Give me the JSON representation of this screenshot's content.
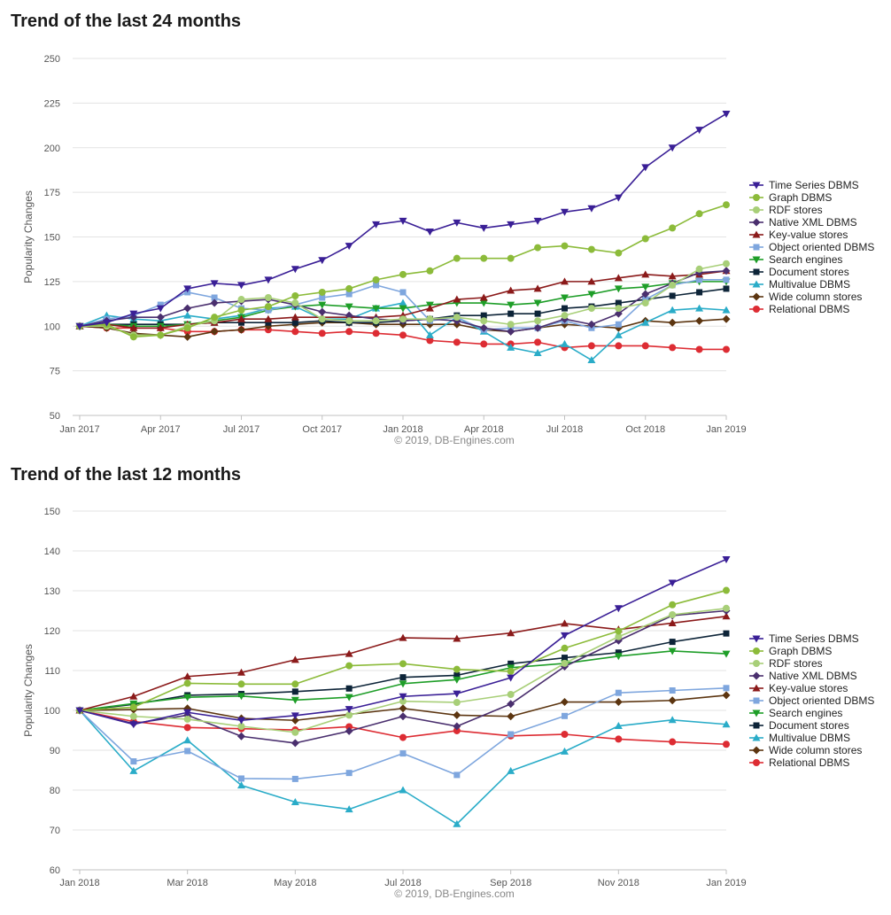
{
  "credit": "© 2019, DB-Engines.com",
  "ylabel": "Popularity Changes",
  "series_styles": [
    {
      "name": "Time Series DBMS",
      "color": "#3a1f96",
      "marker": "triangle-down"
    },
    {
      "name": "Graph DBMS",
      "color": "#8cbb3a",
      "marker": "circle"
    },
    {
      "name": "RDF stores",
      "color": "#a8cf78",
      "marker": "circle"
    },
    {
      "name": "Native XML DBMS",
      "color": "#4a2f6e",
      "marker": "diamond"
    },
    {
      "name": "Key-value stores",
      "color": "#8b1a1a",
      "marker": "triangle-up"
    },
    {
      "name": "Object oriented DBMS",
      "color": "#7ea6de",
      "marker": "square"
    },
    {
      "name": "Search engines",
      "color": "#1e9e28",
      "marker": "triangle-down"
    },
    {
      "name": "Document stores",
      "color": "#0d2438",
      "marker": "square"
    },
    {
      "name": "Multivalue DBMS",
      "color": "#2aacc8",
      "marker": "triangle-up"
    },
    {
      "name": "Wide column stores",
      "color": "#5c3510",
      "marker": "diamond"
    },
    {
      "name": "Relational DBMS",
      "color": "#dd2c33",
      "marker": "circle"
    }
  ],
  "chart_data": [
    {
      "type": "line",
      "title": "Trend of the last 24 months",
      "ylabel": "Popularity Changes",
      "ylim": [
        50,
        250
      ],
      "yticks": [
        50,
        75,
        100,
        125,
        150,
        175,
        200,
        225,
        250
      ],
      "x_range": [
        0,
        24
      ],
      "xticks": [
        {
          "label": "Jan 2017",
          "x": 0
        },
        {
          "label": "Apr 2017",
          "x": 3
        },
        {
          "label": "Jul 2017",
          "x": 6
        },
        {
          "label": "Oct 2017",
          "x": 9
        },
        {
          "label": "Jan 2018",
          "x": 12
        },
        {
          "label": "Apr 2018",
          "x": 15
        },
        {
          "label": "Jul 2018",
          "x": 18
        },
        {
          "label": "Oct 2018",
          "x": 21
        },
        {
          "label": "Jan 2019",
          "x": 24
        }
      ],
      "legend_position": "right",
      "grid": true,
      "series": [
        {
          "name": "Time Series DBMS",
          "values": [
            100,
            102,
            107,
            110,
            121,
            124,
            123,
            126,
            132,
            137,
            145,
            157,
            159,
            153,
            158,
            155,
            157,
            159,
            164,
            166,
            172,
            189,
            200,
            210,
            219
          ]
        },
        {
          "name": "Graph DBMS",
          "values": [
            100,
            101,
            94,
            95,
            99,
            105,
            109,
            111,
            117,
            119,
            121,
            126,
            129,
            131,
            138,
            138,
            138,
            144,
            145,
            143,
            141,
            149,
            155,
            163,
            168
          ]
        },
        {
          "name": "RDF stores",
          "values": [
            100,
            100,
            95,
            95,
            100,
            103,
            115,
            116,
            113,
            104,
            103,
            103,
            104,
            104,
            105,
            103,
            101,
            103,
            106,
            110,
            110,
            113,
            123,
            132,
            135
          ]
        },
        {
          "name": "Native XML DBMS",
          "values": [
            100,
            103,
            105,
            105,
            110,
            113,
            114,
            115,
            112,
            108,
            106,
            104,
            103,
            104,
            103,
            99,
            97,
            99,
            104,
            101,
            107,
            118,
            124,
            130,
            131
          ]
        },
        {
          "name": "Key-value stores",
          "values": [
            100,
            101,
            99,
            99,
            101,
            102,
            104,
            104,
            105,
            105,
            105,
            105,
            106,
            110,
            115,
            116,
            120,
            121,
            125,
            125,
            127,
            129,
            128,
            129,
            131
          ]
        },
        {
          "name": "Object oriented DBMS",
          "values": [
            100,
            104,
            106,
            112,
            119,
            116,
            110,
            109,
            112,
            116,
            118,
            123,
            119,
            103,
            105,
            98,
            99,
            99,
            103,
            99,
            101,
            115,
            123,
            126,
            126
          ]
        },
        {
          "name": "Search engines",
          "values": [
            100,
            101,
            100,
            100,
            101,
            103,
            105,
            109,
            111,
            112,
            111,
            110,
            110,
            112,
            113,
            113,
            112,
            113,
            116,
            118,
            121,
            122,
            124,
            125,
            125
          ]
        },
        {
          "name": "Document stores",
          "values": [
            100,
            101,
            101,
            101,
            101,
            102,
            102,
            102,
            102,
            103,
            102,
            102,
            103,
            104,
            106,
            106,
            107,
            107,
            110,
            111,
            113,
            115,
            117,
            119,
            121
          ]
        },
        {
          "name": "Multivalue DBMS",
          "values": [
            100,
            106,
            104,
            103,
            106,
            104,
            106,
            110,
            111,
            104,
            104,
            110,
            113,
            95,
            105,
            97,
            88,
            85,
            90,
            81,
            95,
            102,
            109,
            110,
            109
          ]
        },
        {
          "name": "Wide column stores",
          "values": [
            100,
            99,
            96,
            95,
            94,
            97,
            98,
            100,
            101,
            102,
            102,
            101,
            101,
            101,
            101,
            98,
            97,
            99,
            101,
            100,
            99,
            103,
            102,
            103,
            104
          ]
        },
        {
          "name": "Relational DBMS",
          "values": [
            100,
            99,
            99,
            99,
            97,
            97,
            98,
            98,
            97,
            96,
            97,
            96,
            95,
            92,
            91,
            90,
            90,
            91,
            88,
            89,
            89,
            89,
            88,
            87,
            87
          ]
        }
      ]
    },
    {
      "type": "line",
      "title": "Trend of the last 12 months",
      "ylabel": "Popularity Changes",
      "ylim": [
        60,
        150
      ],
      "yticks": [
        60,
        70,
        80,
        90,
        100,
        110,
        120,
        130,
        140,
        150
      ],
      "x_range": [
        0,
        12
      ],
      "xticks": [
        {
          "label": "Jan 2018",
          "x": 0
        },
        {
          "label": "Mar 2018",
          "x": 2
        },
        {
          "label": "May 2018",
          "x": 4
        },
        {
          "label": "Jul 2018",
          "x": 6
        },
        {
          "label": "Sep 2018",
          "x": 8
        },
        {
          "label": "Nov 2018",
          "x": 10
        },
        {
          "label": "Jan 2019",
          "x": 12
        }
      ],
      "legend_position": "right",
      "grid": true,
      "series": [
        {
          "name": "Time Series DBMS",
          "values": [
            100,
            96.5,
            99.5,
            97.5,
            98.7,
            100.3,
            103.5,
            104.2,
            108.2,
            118.8,
            125.6,
            132.0,
            137.9
          ]
        },
        {
          "name": "Graph DBMS",
          "values": [
            100,
            100.8,
            106.8,
            106.6,
            106.6,
            111.2,
            111.7,
            110.3,
            109.8,
            115.6,
            119.9,
            126.5,
            130.1
          ]
        },
        {
          "name": "RDF stores",
          "values": [
            100,
            98.5,
            97.8,
            96.0,
            94.5,
            98.8,
            102.3,
            102.0,
            104.0,
            111.8,
            118.5,
            124.0,
            125.6
          ]
        },
        {
          "name": "Native XML DBMS",
          "values": [
            100,
            96.7,
            98.8,
            93.5,
            91.8,
            94.8,
            98.5,
            96.0,
            101.6,
            111.0,
            117.5,
            123.8,
            125.0
          ]
        },
        {
          "name": "Key-value stores",
          "values": [
            100,
            103.5,
            108.5,
            109.5,
            112.7,
            114.2,
            118.2,
            118.0,
            119.4,
            121.8,
            120.3,
            121.9,
            123.6
          ]
        },
        {
          "name": "Object oriented DBMS",
          "values": [
            100,
            87.2,
            89.8,
            82.9,
            82.8,
            84.3,
            89.2,
            83.8,
            94.0,
            98.6,
            104.4,
            105.0,
            105.6
          ]
        },
        {
          "name": "Search engines",
          "values": [
            100,
            101.7,
            103.3,
            103.6,
            102.6,
            103.3,
            106.7,
            107.7,
            110.7,
            111.8,
            113.6,
            114.9,
            114.2
          ]
        },
        {
          "name": "Document stores",
          "values": [
            100,
            101.5,
            103.8,
            104.1,
            104.7,
            105.5,
            108.3,
            108.8,
            111.7,
            113.2,
            114.5,
            117.2,
            119.3
          ]
        },
        {
          "name": "Multivalue DBMS",
          "values": [
            100,
            84.8,
            92.5,
            81.2,
            77.0,
            75.2,
            80.0,
            71.5,
            84.8,
            89.7,
            96.1,
            97.6,
            96.5
          ]
        },
        {
          "name": "Wide column stores",
          "values": [
            100,
            100.2,
            100.5,
            98.0,
            97.5,
            99.0,
            100.5,
            98.8,
            98.5,
            102.1,
            102.1,
            102.5,
            103.8
          ]
        },
        {
          "name": "Relational DBMS",
          "values": [
            100,
            97.2,
            95.7,
            95.4,
            95.1,
            95.9,
            93.2,
            94.9,
            93.6,
            94.0,
            92.8,
            92.1,
            91.5
          ]
        }
      ]
    }
  ]
}
